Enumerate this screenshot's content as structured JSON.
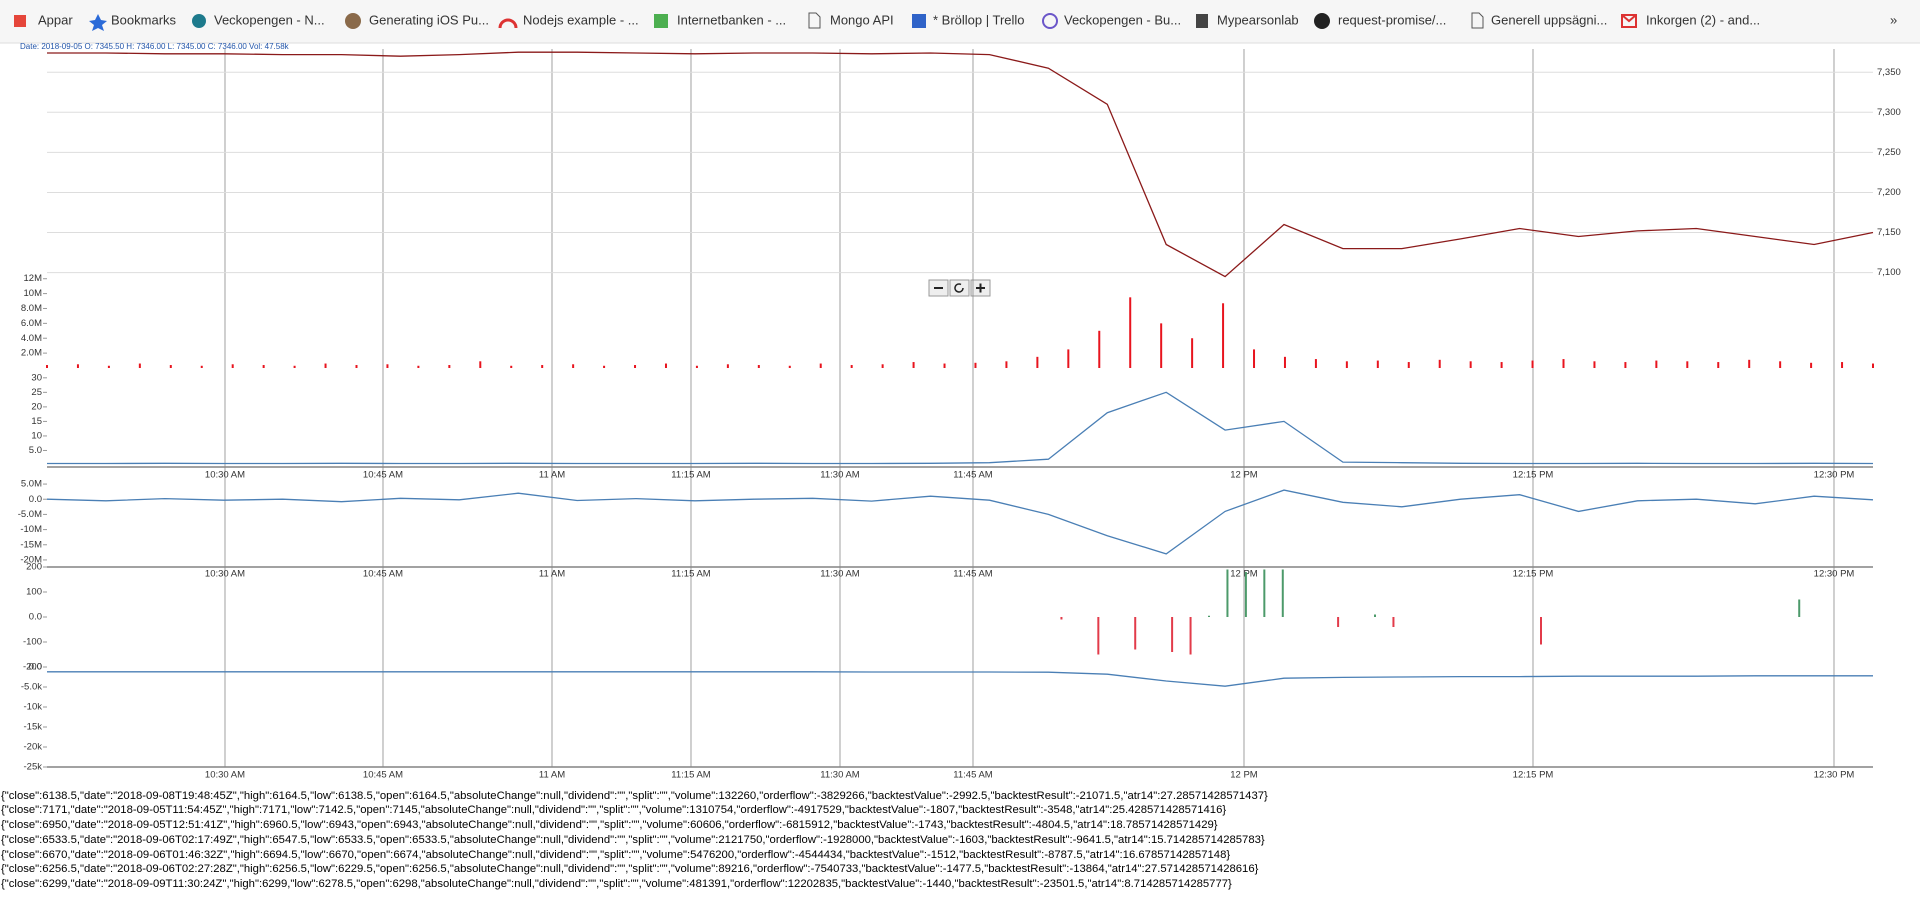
{
  "bookmarks": [
    "Appar",
    "Bookmarks",
    "Veckopengen - N...",
    "Generating iOS Pu...",
    "Nodejs example - ...",
    "Internetbanken - ...",
    "Mongo API",
    "* Bröllop | Trello",
    "Veckopengen - Bu...",
    "Mypearsonlab",
    "request-promise/...",
    "Generell uppsägni...",
    "Inkorgen (2) - and...",
    "»"
  ],
  "chart_header": "Date: 2018-09-05 O: 7345.50 H: 7346.00 L: 7345.00 C: 7346.00 Vol: 47.58k",
  "x_ticks": [
    "10:30 AM",
    "10:45 AM",
    "11 AM",
    "11:15 AM",
    "11:30 AM",
    "11:45 AM",
    "12 PM",
    "12:15 PM",
    "12:30 PM"
  ],
  "panels": [
    {
      "type": "line",
      "color": "#8b1a1a",
      "ylim": [
        7097,
        7379
      ],
      "grid": true,
      "yticks": [
        {
          "value": 7100,
          "label": "7,100"
        },
        {
          "value": 7150,
          "label": "7,150"
        },
        {
          "value": 7200,
          "label": "7,200"
        },
        {
          "value": 7250,
          "label": "7,250"
        },
        {
          "value": 7300,
          "label": "7,300"
        },
        {
          "value": 7350,
          "label": "7,350"
        }
      ],
      "values": [
        7374,
        7374,
        7373,
        7373,
        7372,
        7372,
        7370,
        7372,
        7375,
        7375,
        7374,
        7373,
        7374,
        7374,
        7373,
        7374,
        7372,
        7355,
        7310,
        7135,
        7095,
        7160,
        7130,
        7130,
        7142,
        7155,
        7145,
        7152,
        7155,
        7145,
        7135,
        7150
      ]
    },
    {
      "type": "bar",
      "color": "#e8141e",
      "ylim": [
        0,
        12500000
      ],
      "grid": false,
      "yticks": [
        {
          "value": 2000000,
          "label": "2.0M"
        },
        {
          "value": 4000000,
          "label": "4.0M"
        },
        {
          "value": 6000000,
          "label": "6.0M"
        },
        {
          "value": 8000000,
          "label": "8.0M"
        },
        {
          "value": 10000000,
          "label": "10M"
        },
        {
          "value": 12000000,
          "label": "12M"
        }
      ],
      "values": [
        400000,
        500000,
        300000,
        600000,
        400000,
        300000,
        500000,
        400000,
        300000,
        600000,
        400000,
        500000,
        300000,
        400000,
        900000,
        300000,
        400000,
        500000,
        300000,
        400000,
        600000,
        300000,
        500000,
        400000,
        300000,
        600000,
        400000,
        500000,
        800000,
        600000,
        700000,
        900000,
        1500000,
        2500000,
        5000000,
        9500000,
        6000000,
        4000000,
        8700000,
        2500000,
        1500000,
        1200000,
        900000,
        1000000,
        800000,
        1100000,
        900000,
        800000,
        1000000,
        1200000,
        900000,
        800000,
        1000000,
        900000,
        800000,
        1100000,
        900000,
        700000,
        800000,
        600000
      ]
    },
    {
      "type": "line",
      "color": "#4a7fb5",
      "ylim": [
        0,
        32
      ],
      "grid": false,
      "yticks": [
        {
          "value": 5,
          "label": "5.0"
        },
        10,
        15,
        20,
        25,
        30
      ],
      "values": [
        0.5,
        0.5,
        0.6,
        0.5,
        0.5,
        0.6,
        0.5,
        0.5,
        0.6,
        0.5,
        0.5,
        0.5,
        0.6,
        0.5,
        0.5,
        0.6,
        0.8,
        2,
        18,
        25,
        12,
        15,
        1,
        0.8,
        0.6,
        0.5,
        0.5,
        0.6,
        0.5,
        0.5,
        0.6,
        0.5
      ]
    },
    {
      "type": "line",
      "color": "#4a7fb5",
      "ylim": [
        -22000000,
        7000000
      ],
      "grid": false,
      "yticks": [
        {
          "value": 5000000,
          "label": "5.0M"
        },
        {
          "value": 0,
          "label": "0.0"
        },
        {
          "value": -5000000,
          "label": "-5.0M"
        },
        {
          "value": -10000000,
          "label": "-10M"
        },
        {
          "value": -15000000,
          "label": "-15M"
        },
        {
          "value": -20000000,
          "label": "-20M"
        }
      ],
      "values": [
        0,
        -500000,
        200000,
        -300000,
        0,
        -800000,
        300000,
        -200000,
        2000000,
        -400000,
        200000,
        -500000,
        0,
        300000,
        -600000,
        1000000,
        -300000,
        -5000000,
        -12000000,
        -18000000,
        -4000000,
        3000000,
        -1000000,
        -2500000,
        0,
        1500000,
        -4000000,
        -500000,
        0,
        -1500000,
        1000000,
        -200000
      ]
    },
    {
      "type": "bar",
      "pos_color": "#4c9a6a",
      "neg_color": "#e23b4a",
      "ylim": [
        -200,
        200
      ],
      "grid": false,
      "yticks": [
        200,
        100,
        {
          "value": 0,
          "label": "0.0"
        },
        -100,
        -200
      ],
      "values": [
        null,
        null,
        null,
        null,
        null,
        null,
        null,
        null,
        null,
        null,
        null,
        null,
        null,
        null,
        null,
        null,
        null,
        null,
        null,
        null,
        null,
        null,
        null,
        null,
        null,
        null,
        null,
        null,
        null,
        null,
        null,
        null,
        null,
        null,
        null,
        null,
        null,
        null,
        null,
        null,
        null,
        null,
        null,
        null,
        null,
        null,
        null,
        null,
        null,
        null,
        null,
        null,
        null,
        null,
        null,
        -10,
        null,
        -150,
        null,
        -130,
        null,
        -140,
        -150,
        5,
        190,
        180,
        190,
        190,
        null,
        null,
        -40,
        null,
        10,
        -40,
        null,
        null,
        null,
        null,
        null,
        null,
        null,
        -110,
        null,
        null,
        null,
        null,
        null,
        null,
        null,
        null,
        null,
        null,
        null,
        null,
        null,
        70,
        null,
        null,
        null,
        null
      ]
    },
    {
      "type": "line",
      "color": "#4a7fb5",
      "ylim": [
        -25000,
        0
      ],
      "grid": false,
      "yticks": [
        {
          "value": 0,
          "label": "0.0"
        },
        {
          "value": -5000,
          "label": "-5.0k"
        },
        {
          "value": -10000,
          "label": "-10k"
        },
        {
          "value": -15000,
          "label": "-15k"
        },
        {
          "value": -20000,
          "label": "-20k"
        },
        {
          "value": -25000,
          "label": "-25k"
        }
      ],
      "values": [
        -1200,
        -1200,
        -1200,
        -1200,
        -1200,
        -1200,
        -1200,
        -1200,
        -1200,
        -1200,
        -1200,
        -1200,
        -1200,
        -1200,
        -1250,
        -1250,
        -1250,
        -1300,
        -1800,
        -3500,
        -4800,
        -2800,
        -2600,
        -2500,
        -2400,
        -2400,
        -2300,
        -2300,
        -2300,
        -2200,
        -2200,
        -2200
      ]
    }
  ],
  "json_lines": [
    "{\"close\":6138.5,\"date\":\"2018-09-08T19:48:45Z\",\"high\":6164.5,\"low\":6138.5,\"open\":6164.5,\"absoluteChange\":null,\"dividend\":\"\",\"split\":\"\",\"volume\":132260,\"orderflow\":-3829266,\"backtestValue\":-2992.5,\"backtestResult\":-21071.5,\"atr14\":27.28571428571437}",
    "{\"close\":7171,\"date\":\"2018-09-05T11:54:45Z\",\"high\":7171,\"low\":7142.5,\"open\":7145,\"absoluteChange\":null,\"dividend\":\"\",\"split\":\"\",\"volume\":1310754,\"orderflow\":-4917529,\"backtestValue\":-1807,\"backtestResult\":-3548,\"atr14\":25.428571428571416}",
    "{\"close\":6950,\"date\":\"2018-09-05T12:51:41Z\",\"high\":6960.5,\"low\":6943,\"open\":6943,\"absoluteChange\":null,\"dividend\":\"\",\"split\":\"\",\"volume\":60606,\"orderflow\":-6815912,\"backtestValue\":-1743,\"backtestResult\":-4804.5,\"atr14\":18.78571428571429}",
    "{\"close\":6533.5,\"date\":\"2018-09-06T02:17:49Z\",\"high\":6547.5,\"low\":6533.5,\"open\":6533.5,\"absoluteChange\":null,\"dividend\":\"\",\"split\":\"\",\"volume\":2121750,\"orderflow\":-1928000,\"backtestValue\":-1603,\"backtestResult\":-9641.5,\"atr14\":15.714285714285783}",
    "{\"close\":6670,\"date\":\"2018-09-06T01:46:32Z\",\"high\":6694.5,\"low\":6670,\"open\":6674,\"absoluteChange\":null,\"dividend\":\"\",\"split\":\"\",\"volume\":5476200,\"orderflow\":-4544434,\"backtestValue\":-1512,\"backtestResult\":-8787.5,\"atr14\":16.67857142857148}",
    "{\"close\":6256.5,\"date\":\"2018-09-06T02:27:28Z\",\"high\":6256.5,\"low\":6229.5,\"open\":6256.5,\"absoluteChange\":null,\"dividend\":\"\",\"split\":\"\",\"volume\":89216,\"orderflow\":-7540733,\"backtestValue\":-1477.5,\"backtestResult\":-13864,\"atr14\":27.571428571428616}",
    "{\"close\":6299,\"date\":\"2018-09-09T11:30:24Z\",\"high\":6299,\"low\":6278.5,\"open\":6298,\"absoluteChange\":null,\"dividend\":\"\",\"split\":\"\",\"volume\":481391,\"orderflow\":12202835,\"backtestValue\":-1440,\"backtestResult\":-23501.5,\"atr14\":8.714285714285777}"
  ]
}
